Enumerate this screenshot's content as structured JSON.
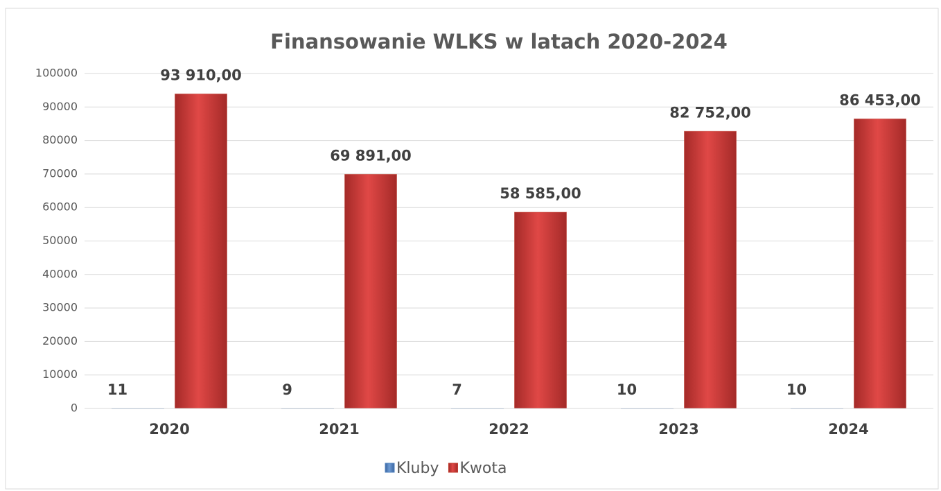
{
  "chart_data": {
    "type": "bar",
    "title": "Finansowanie WLKS w latach 2020-2024",
    "categories": [
      "2020",
      "2021",
      "2022",
      "2023",
      "2024"
    ],
    "series": [
      {
        "name": "Kluby",
        "color": "#4f81bd",
        "values": [
          11,
          9,
          7,
          10,
          10
        ]
      },
      {
        "name": "Kwota",
        "color": "#c0392b",
        "values": [
          93910,
          69891,
          58585,
          82752,
          86453
        ],
        "value_labels": [
          "93 910,00",
          "69 891,00",
          "58 585,00",
          "82 752,00",
          "86 453,00"
        ]
      }
    ],
    "ylim": [
      0,
      100000
    ],
    "yticks": [
      0,
      10000,
      20000,
      30000,
      40000,
      50000,
      60000,
      70000,
      80000,
      90000,
      100000
    ],
    "grid": true,
    "legend": "bottom"
  }
}
